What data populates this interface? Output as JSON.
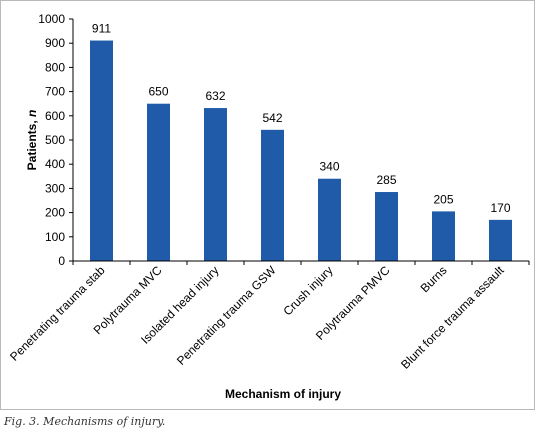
{
  "caption": "Fig. 3. Mechanisms of injury.",
  "colors": {
    "bar": "#1f5ba8",
    "axis": "#000000",
    "frame": "#b9b9b9"
  },
  "chart_data": {
    "type": "bar",
    "title": "",
    "xlabel": "Mechanism of injury",
    "ylabel_main": "Patients, ",
    "ylabel_italic": "n",
    "ylim": [
      0,
      1000
    ],
    "yticks": [
      0,
      100,
      200,
      300,
      400,
      500,
      600,
      700,
      800,
      900,
      1000
    ],
    "grid": false,
    "categories": [
      "Penetrating trauma stab",
      "Polytrauma MVC",
      "Isolated head injury",
      "Penetrating trauma GSW",
      "Crush injury",
      "Polytrauma PMVC",
      "Burns",
      "Blunt force trauma assault"
    ],
    "values": [
      911,
      650,
      632,
      542,
      340,
      285,
      205,
      170
    ]
  }
}
